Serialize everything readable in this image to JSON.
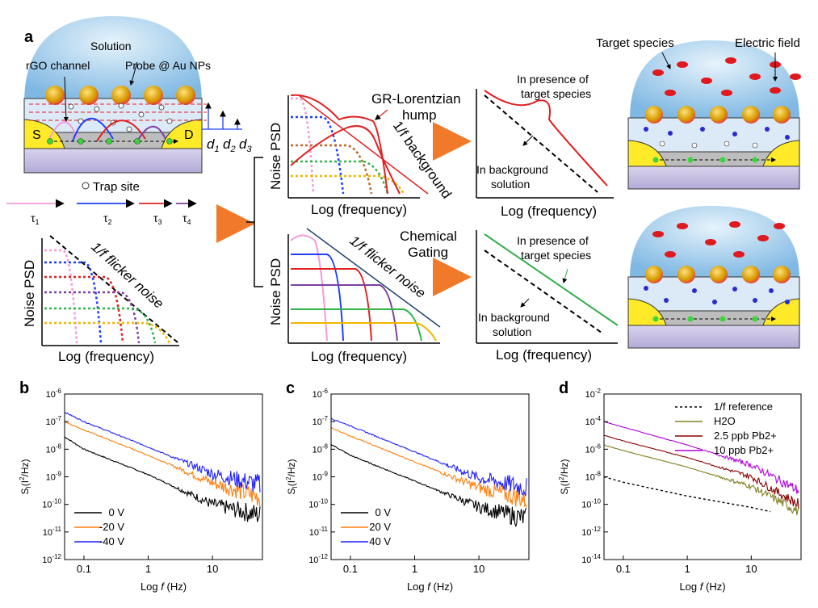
{
  "panel_labels": {
    "a": "a",
    "b": "b",
    "c": "c",
    "d": "d"
  },
  "schematic": {
    "solution": "Solution",
    "rgo_channel": "rGO channel",
    "probe": "Probe @ Au NPs",
    "source": "S",
    "drain": "D",
    "d1": "d",
    "d2": "d",
    "d3": "d",
    "d1_sub": "1",
    "d2_sub": "2",
    "d3_sub": "3",
    "trap_site": "Trap site",
    "tau_labels": [
      "τ",
      "τ",
      "τ",
      "τ"
    ],
    "tau_subs": [
      "1",
      "2",
      "3",
      "4"
    ],
    "target_species": "Target species",
    "electric_field": "Electric field"
  },
  "conceptual": {
    "noise_psd": "Noise PSD",
    "log_frequency": "Log (frequency)",
    "flicker_noise": "1/f flicker noise",
    "gr_hump": "GR-Lorentzian",
    "gr_hump2": "hump",
    "one_f_background": "1/f background",
    "chemical_gating": "Chemical",
    "chemical_gating2": "Gating",
    "presence1": "In presence of",
    "presence2": "target species",
    "background1": "In background",
    "background2": "solution"
  },
  "chart_data": [
    {
      "id": "b",
      "type": "line",
      "xlabel": "Log f (Hz)",
      "ylabel": "S_I(I^2/Hz)",
      "x_scale": "log",
      "y_scale": "log",
      "xlim": [
        0.05,
        60
      ],
      "ylim": [
        1e-12,
        1e-06
      ],
      "x_ticks": [
        "0.1",
        "1",
        "10"
      ],
      "y_ticks": [
        "10-12",
        "10-11",
        "10-10",
        "10-9",
        "10-8",
        "10-7",
        "10-6"
      ],
      "legend": "bottom-left",
      "series": [
        {
          "name": "0 V",
          "color": "#000000",
          "x": [
            0.05,
            0.1,
            1,
            10,
            55
          ],
          "values": [
            2.8e-08,
            1e-08,
            1.2e-09,
            1e-10,
            4e-11
          ]
        },
        {
          "name": "-20 V",
          "color": "#ff7f0e",
          "x": [
            0.05,
            0.1,
            1,
            10,
            55
          ],
          "values": [
            1e-07,
            5e-08,
            6e-09,
            6e-10,
            1.8e-10
          ]
        },
        {
          "name": "-40 V",
          "color": "#1f1fff",
          "x": [
            0.05,
            0.1,
            1,
            10,
            55
          ],
          "values": [
            2.2e-07,
            1e-07,
            1.2e-08,
            1.3e-09,
            5e-10
          ]
        }
      ]
    },
    {
      "id": "c",
      "type": "line",
      "xlabel": "Log f (Hz)",
      "ylabel": "S_I(I^2/Hz)",
      "x_scale": "log",
      "y_scale": "log",
      "xlim": [
        0.05,
        60
      ],
      "ylim": [
        1e-12,
        1e-06
      ],
      "x_ticks": [
        "0.1",
        "1",
        "10"
      ],
      "y_ticks": [
        "10-12",
        "10-11",
        "10-10",
        "10-9",
        "10-8",
        "10-7",
        "10-6"
      ],
      "legend": "bottom-left",
      "series": [
        {
          "name": "0 V",
          "color": "#000000",
          "x": [
            0.05,
            0.1,
            1,
            10,
            55
          ],
          "values": [
            1.5e-08,
            6e-09,
            7e-10,
            8e-11,
            3e-11
          ]
        },
        {
          "name": "20 V",
          "color": "#ff7f0e",
          "x": [
            0.05,
            0.1,
            1,
            10,
            55
          ],
          "values": [
            6e-08,
            3e-08,
            3.5e-09,
            4e-10,
            1.5e-10
          ]
        },
        {
          "name": "40 V",
          "color": "#1f1fff",
          "x": [
            0.05,
            0.1,
            1,
            10,
            55
          ],
          "values": [
            1.3e-07,
            7e-08,
            8e-09,
            9e-10,
            4e-10
          ]
        }
      ]
    },
    {
      "id": "d",
      "type": "line",
      "xlabel": "Log f (Hz)",
      "ylabel": "S_I(I^2/Hz)",
      "x_scale": "log",
      "y_scale": "log",
      "xlim": [
        0.05,
        60
      ],
      "ylim": [
        1e-14,
        0.01
      ],
      "x_ticks": [
        "0.1",
        "1",
        "10"
      ],
      "y_ticks": [
        "10-14",
        "10-12",
        "10-10",
        "10-8",
        "10-6",
        "10-4",
        "10-2"
      ],
      "legend": "top-right",
      "series": [
        {
          "name": "1/f reference",
          "color": "#000000",
          "dashed": true,
          "x": [
            0.05,
            0.1,
            1,
            10,
            20
          ],
          "values": [
            1e-08,
            4e-09,
            4e-10,
            6e-11,
            3e-11
          ]
        },
        {
          "name": "H2O",
          "color": "#808020",
          "x": [
            0.05,
            0.1,
            1,
            10,
            55
          ],
          "values": [
            2e-06,
            8e-07,
            5e-08,
            2e-09,
            3e-11
          ]
        },
        {
          "name": "2.5 ppb Pb2+",
          "color": "#8b0000",
          "x": [
            0.05,
            0.1,
            1,
            10,
            55
          ],
          "values": [
            1e-05,
            4e-06,
            2.5e-07,
            1e-08,
            1e-10
          ]
        },
        {
          "name": "10 ppb Pb2+",
          "color": "#b000d8",
          "x": [
            0.05,
            0.1,
            1,
            10,
            55
          ],
          "values": [
            0.0001,
            4e-05,
            2e-06,
            7e-08,
            1e-09
          ]
        }
      ]
    }
  ]
}
